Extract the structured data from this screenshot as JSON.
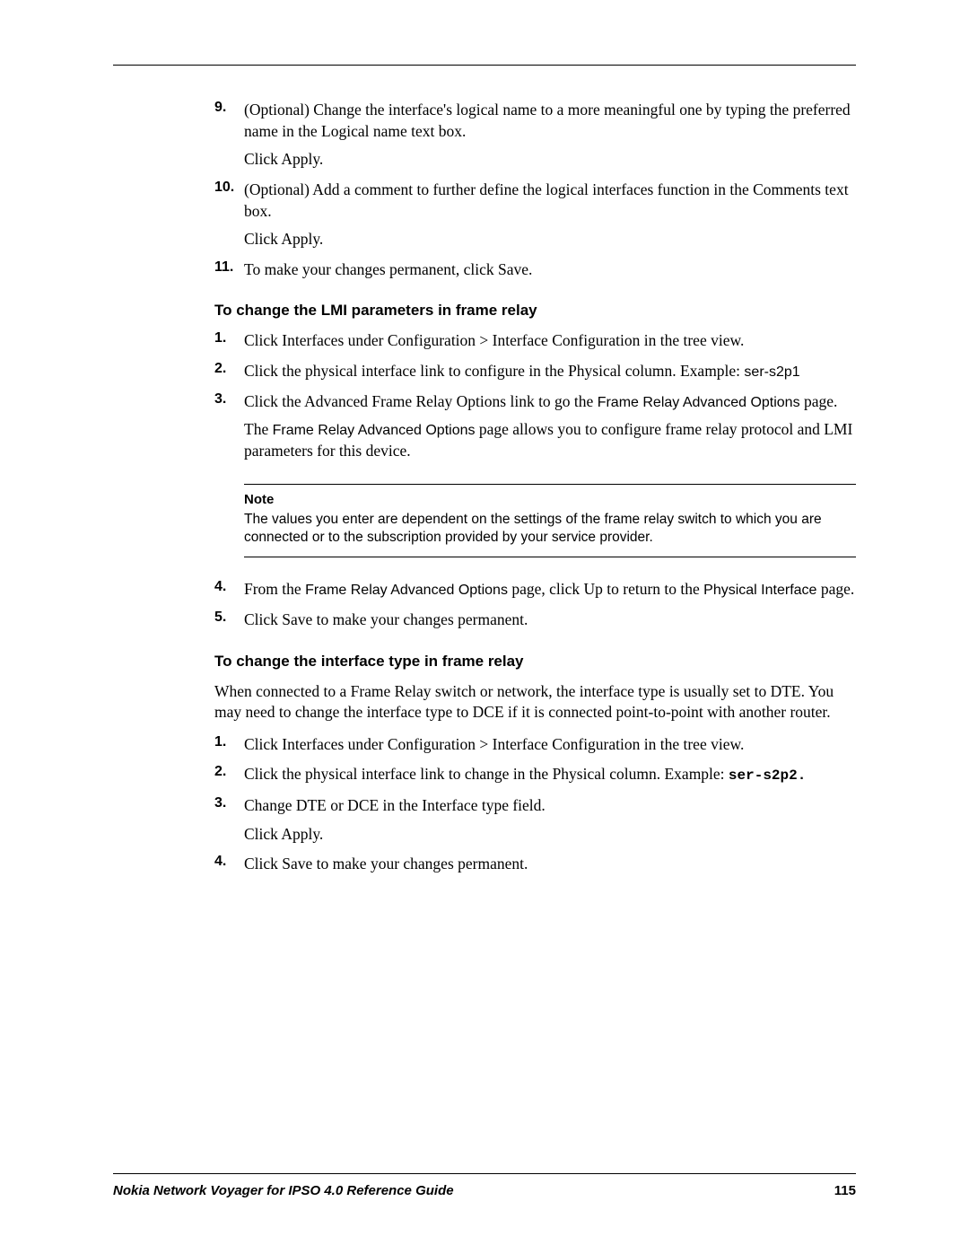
{
  "items_top": [
    {
      "num": "9.",
      "lines": [
        "(Optional) Change the interface's logical name to a more meaningful one by typing the preferred name in the Logical name text box.",
        "Click Apply."
      ]
    },
    {
      "num": "10.",
      "lines": [
        "(Optional) Add a comment to further define the logical interfaces function in the Comments text box.",
        "Click Apply."
      ]
    },
    {
      "num": "11.",
      "lines": [
        "To make your changes permanent, click Save."
      ]
    }
  ],
  "section1": {
    "heading": "To change the LMI parameters in frame relay",
    "items": [
      {
        "num": "1.",
        "text": "Click Interfaces under Configuration > Interface Configuration in the tree view."
      },
      {
        "num": "2.",
        "pre": "Click the physical interface link to configure in the Physical column. Example: ",
        "sans_suffix": "ser-s2p1"
      },
      {
        "num": "3.",
        "pre": "Click the Advanced Frame Relay Options link to go the ",
        "sans_mid": "Frame Relay Advanced Options",
        "post": " page.",
        "sub_pre": "The ",
        "sub_sans": "Frame Relay Advanced Options",
        "sub_post": " page allows you to configure frame relay protocol and LMI parameters for this device."
      }
    ],
    "note_label": "Note",
    "note_text": "The values you enter are dependent on the settings of the frame relay switch to which you are connected or to the subscription provided by your service provider.",
    "items_after": [
      {
        "num": "4.",
        "pre": "From the ",
        "sans_mid": "Frame Relay Advanced Options",
        "mid": " page, click Up to return to the ",
        "sans_end": "Physical Interface",
        "post": " page."
      },
      {
        "num": "5.",
        "text": "Click Save to make your changes permanent."
      }
    ]
  },
  "section2": {
    "heading": "To change the interface type in frame relay",
    "intro": "When connected to a Frame Relay switch or network, the interface type is usually set to DTE. You may need to change the interface type to DCE if it is connected point-to-point with another router.",
    "items": [
      {
        "num": "1.",
        "text": "Click Interfaces under Configuration > Interface Configuration in the tree view."
      },
      {
        "num": "2.",
        "pre": "Click the physical interface link to change in the Physical column. Example: ",
        "mono": "ser-s2p2."
      },
      {
        "num": "3.",
        "lines": [
          "Change DTE or DCE in the Interface type field.",
          "Click Apply."
        ]
      },
      {
        "num": "4.",
        "text": "Click Save to make your changes permanent."
      }
    ]
  },
  "footer": {
    "title": "Nokia Network Voyager for IPSO 4.0 Reference Guide",
    "page": "115"
  }
}
